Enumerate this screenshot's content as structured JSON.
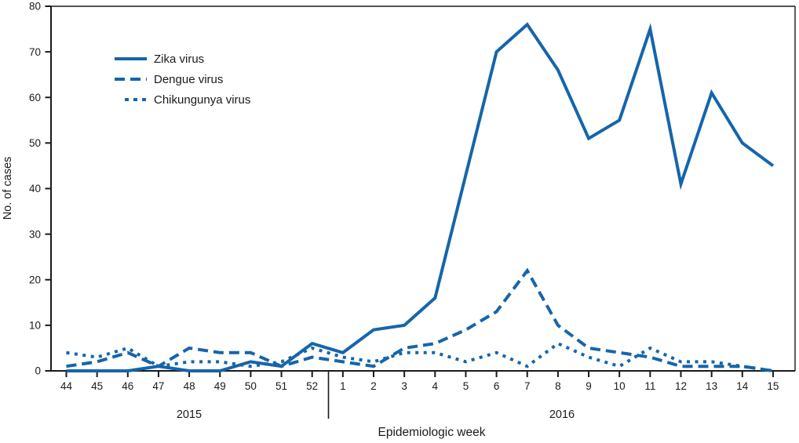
{
  "figure": {
    "y_axis_label": "No. of cases",
    "x_axis_label": "Epidemiologic week",
    "year_left": "2015",
    "year_right": "2016"
  },
  "legend": {
    "items": [
      {
        "label": "Zika virus",
        "style": "solid"
      },
      {
        "label": "Dengue virus",
        "style": "dashed"
      },
      {
        "label": "Chikungunya virus",
        "style": "dotted"
      }
    ]
  },
  "colors": {
    "line": "#1565ab",
    "axis": "#1a1a1a",
    "background": "#ffffff"
  },
  "chart_data": {
    "type": "line",
    "title": "",
    "xlabel": "Epidemiologic week",
    "ylabel": "No. of cases",
    "ylim": [
      0,
      80
    ],
    "y_ticks": [
      0,
      10,
      20,
      30,
      40,
      50,
      60,
      70,
      80
    ],
    "grid": false,
    "legend_position": "upper-left",
    "categories": [
      "44",
      "45",
      "46",
      "47",
      "48",
      "49",
      "50",
      "51",
      "52",
      "1",
      "2",
      "3",
      "4",
      "5",
      "6",
      "7",
      "8",
      "9",
      "10",
      "11",
      "12",
      "13",
      "14",
      "15"
    ],
    "year_groups": [
      {
        "year": "2015",
        "start_index": 0,
        "end_index": 8
      },
      {
        "year": "2016",
        "start_index": 9,
        "end_index": 23
      }
    ],
    "series": [
      {
        "name": "Zika virus",
        "line_style": "solid",
        "values": [
          0,
          0,
          0,
          1,
          0,
          0,
          2,
          1,
          6,
          4,
          9,
          10,
          16,
          43,
          70,
          76,
          66,
          51,
          55,
          75,
          41,
          61,
          50,
          45
        ]
      },
      {
        "name": "Dengue virus",
        "line_style": "dashed",
        "values": [
          1,
          2,
          4,
          1,
          5,
          4,
          4,
          1,
          3,
          2,
          1,
          5,
          6,
          9,
          13,
          22,
          10,
          5,
          4,
          3,
          1,
          1,
          1,
          0
        ]
      },
      {
        "name": "Chikungunya virus",
        "line_style": "dotted",
        "values": [
          4,
          3,
          5,
          1,
          2,
          2,
          1,
          2,
          5,
          3,
          2,
          4,
          4,
          2,
          4,
          1,
          6,
          3,
          1,
          5,
          2,
          2,
          1,
          0
        ]
      }
    ]
  }
}
